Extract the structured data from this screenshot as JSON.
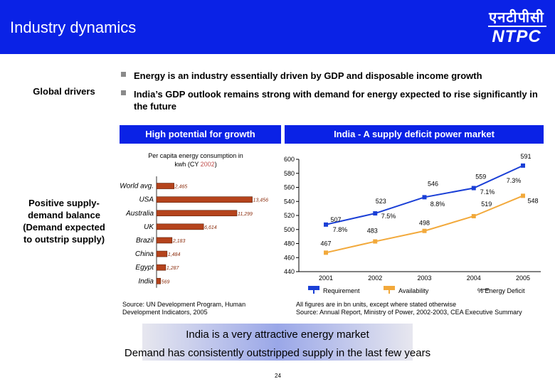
{
  "header": {
    "title": "Industry dynamics",
    "logo_hindi": "एनटीपीसी",
    "logo_english": "NTPC"
  },
  "side": {
    "global_drivers": "Global drivers",
    "positive_balance": "Positive supply-demand balance (Demand expected to outstrip supply)"
  },
  "bullets": [
    "Energy is an industry essentially driven by GDP and disposable income growth",
    "India’s GDP outlook remains strong with demand for energy expected to rise significantly in the future"
  ],
  "panels": {
    "left_title": "High potential for growth",
    "right_title": "India - A supply deficit power market"
  },
  "colors": {
    "header_blue": "#0a22e6",
    "bar_brown": "#b5431c",
    "requirement": "#1a3fd6",
    "availability": "#f2a93b",
    "deficit": "#3fae3f"
  },
  "chart_data": [
    {
      "type": "bar",
      "orientation": "horizontal",
      "title": "Per capita energy consumption in kwh (CY 2002)",
      "title_line1": "Per capita energy consumption in",
      "title_line2_prefix": "kwh (CY ",
      "title_year": "2002",
      "title_line2_suffix": ")",
      "categories": [
        "World avg.",
        "USA",
        "Australia",
        "UK",
        "Brazil",
        "China",
        "Egypt",
        "India"
      ],
      "values": [
        2465,
        13456,
        11299,
        6614,
        2183,
        1484,
        1287,
        569
      ],
      "value_labels": [
        "2,465",
        "13,456",
        "11,299",
        "6,614",
        "2,183",
        "1,484",
        "1,287",
        "569"
      ],
      "xlim": [
        0,
        14000
      ]
    },
    {
      "type": "line",
      "x": [
        "2001",
        "2002",
        "2003",
        "2004",
        "2005"
      ],
      "ylim": [
        440,
        600
      ],
      "yticks": [
        440,
        460,
        480,
        500,
        520,
        540,
        560,
        580,
        600
      ],
      "series": [
        {
          "name": "Requirement",
          "values": [
            507,
            523,
            546,
            559,
            591
          ]
        },
        {
          "name": "Availability",
          "values": [
            467,
            483,
            498,
            519,
            548
          ]
        }
      ],
      "deficit": {
        "name": "% Energy Deficit",
        "labels": [
          "7.8%",
          "7.5%",
          "8.8%",
          "7.1%",
          "7.3%"
        ]
      }
    }
  ],
  "sources": {
    "left": "Source: UN Development Program, Human Development Indicators, 2005",
    "right_1": "All figures are in bn units, except where stated otherwise",
    "right_2": "Source: Annual Report, Ministry of Power, 2002-2003, CEA Executive Summary"
  },
  "bottom": {
    "line1": "India is a very attractive energy market",
    "line2": "Demand has consistently outstripped supply in the last few years"
  },
  "page_number": "24"
}
